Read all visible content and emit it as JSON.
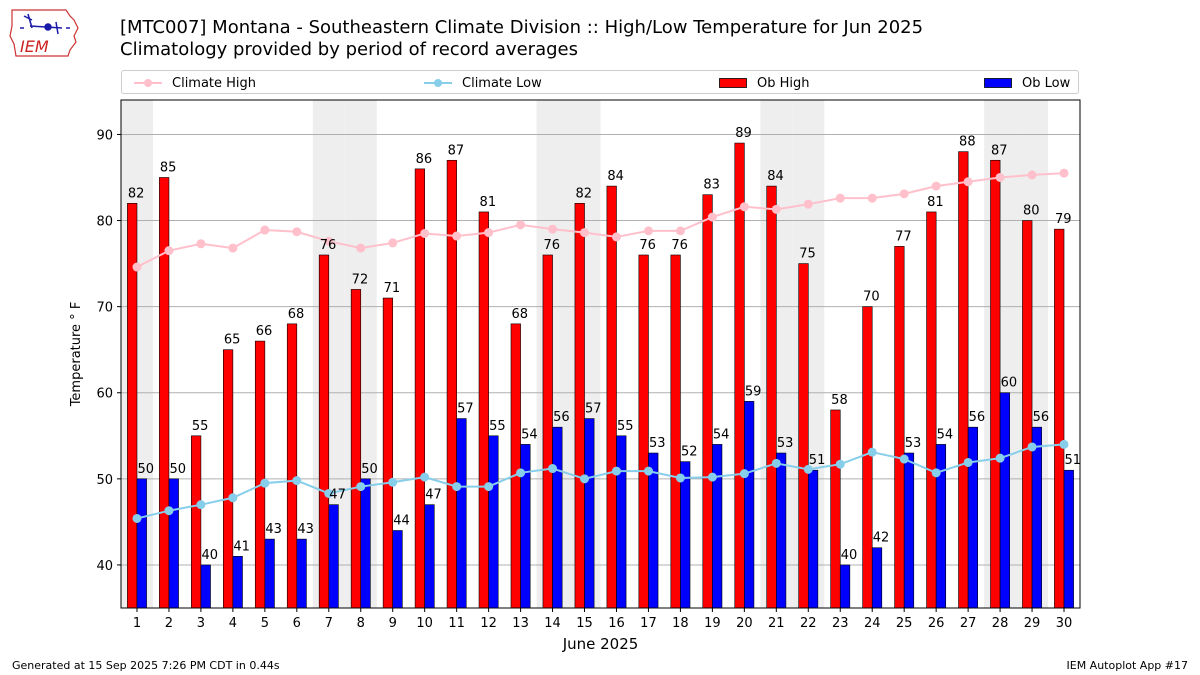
{
  "logo": {
    "text": "IEM"
  },
  "title": {
    "line1": "[MTC007] Montana - Southeastern Climate Division :: High/Low Temperature for Jun 2025",
    "line2": "Climatology provided by period of record averages"
  },
  "footer": {
    "left": "Generated at 15 Sep 2025 7:26 PM CDT in 0.44s",
    "right": "IEM Autoplot App #17"
  },
  "colors": {
    "ob_high": "#ff0000",
    "ob_low": "#0000ff",
    "climate_high": "#ffc0cb",
    "climate_low": "#87ceeb",
    "weekend_band": "#eeeeee"
  },
  "chart_data": {
    "type": "bar",
    "xlabel": "June 2025",
    "ylabel": "Temperature ° F",
    "xlim": [
      0.5,
      30.5
    ],
    "ylim": [
      35,
      94
    ],
    "yticks": [
      40,
      50,
      60,
      70,
      80,
      90
    ],
    "grid": "horizontal",
    "legend_position": "top",
    "categories": [
      "1",
      "2",
      "3",
      "4",
      "5",
      "6",
      "7",
      "8",
      "9",
      "10",
      "11",
      "12",
      "13",
      "14",
      "15",
      "16",
      "17",
      "18",
      "19",
      "20",
      "21",
      "22",
      "23",
      "24",
      "25",
      "26",
      "27",
      "28",
      "29",
      "30"
    ],
    "weekend_days": [
      1,
      7,
      8,
      14,
      15,
      21,
      22,
      28,
      29
    ],
    "series": [
      {
        "name": "Climate High",
        "kind": "line",
        "values": [
          74.6,
          76.5,
          77.3,
          76.8,
          78.9,
          78.7,
          77.6,
          76.8,
          77.4,
          78.5,
          78.2,
          78.6,
          79.5,
          79.0,
          78.6,
          78.1,
          78.8,
          78.8,
          80.4,
          81.6,
          81.3,
          81.9,
          82.6,
          82.6,
          83.1,
          84.0,
          84.5,
          85.0,
          85.3,
          85.5
        ]
      },
      {
        "name": "Climate Low",
        "kind": "line",
        "values": [
          45.4,
          46.3,
          47.0,
          47.8,
          49.5,
          49.8,
          48.3,
          49.1,
          49.6,
          50.2,
          49.1,
          49.1,
          50.7,
          51.2,
          50.0,
          50.9,
          50.9,
          50.1,
          50.2,
          50.6,
          51.8,
          51.1,
          51.7,
          53.1,
          52.3,
          50.7,
          51.9,
          52.4,
          53.7,
          54.0
        ]
      },
      {
        "name": "Ob High",
        "kind": "bar",
        "values": [
          82,
          85,
          55,
          65,
          66,
          68,
          76,
          72,
          71,
          86,
          87,
          81,
          68,
          76,
          82,
          84,
          76,
          76,
          83,
          89,
          84,
          75,
          58,
          70,
          77,
          81,
          88,
          87,
          80,
          79
        ]
      },
      {
        "name": "Ob Low",
        "kind": "bar",
        "values": [
          50,
          50,
          40,
          41,
          43,
          43,
          47,
          50,
          44,
          47,
          57,
          55,
          54,
          56,
          57,
          55,
          53,
          52,
          54,
          59,
          53,
          51,
          40,
          42,
          53,
          54,
          56,
          60,
          56,
          51
        ]
      }
    ]
  }
}
